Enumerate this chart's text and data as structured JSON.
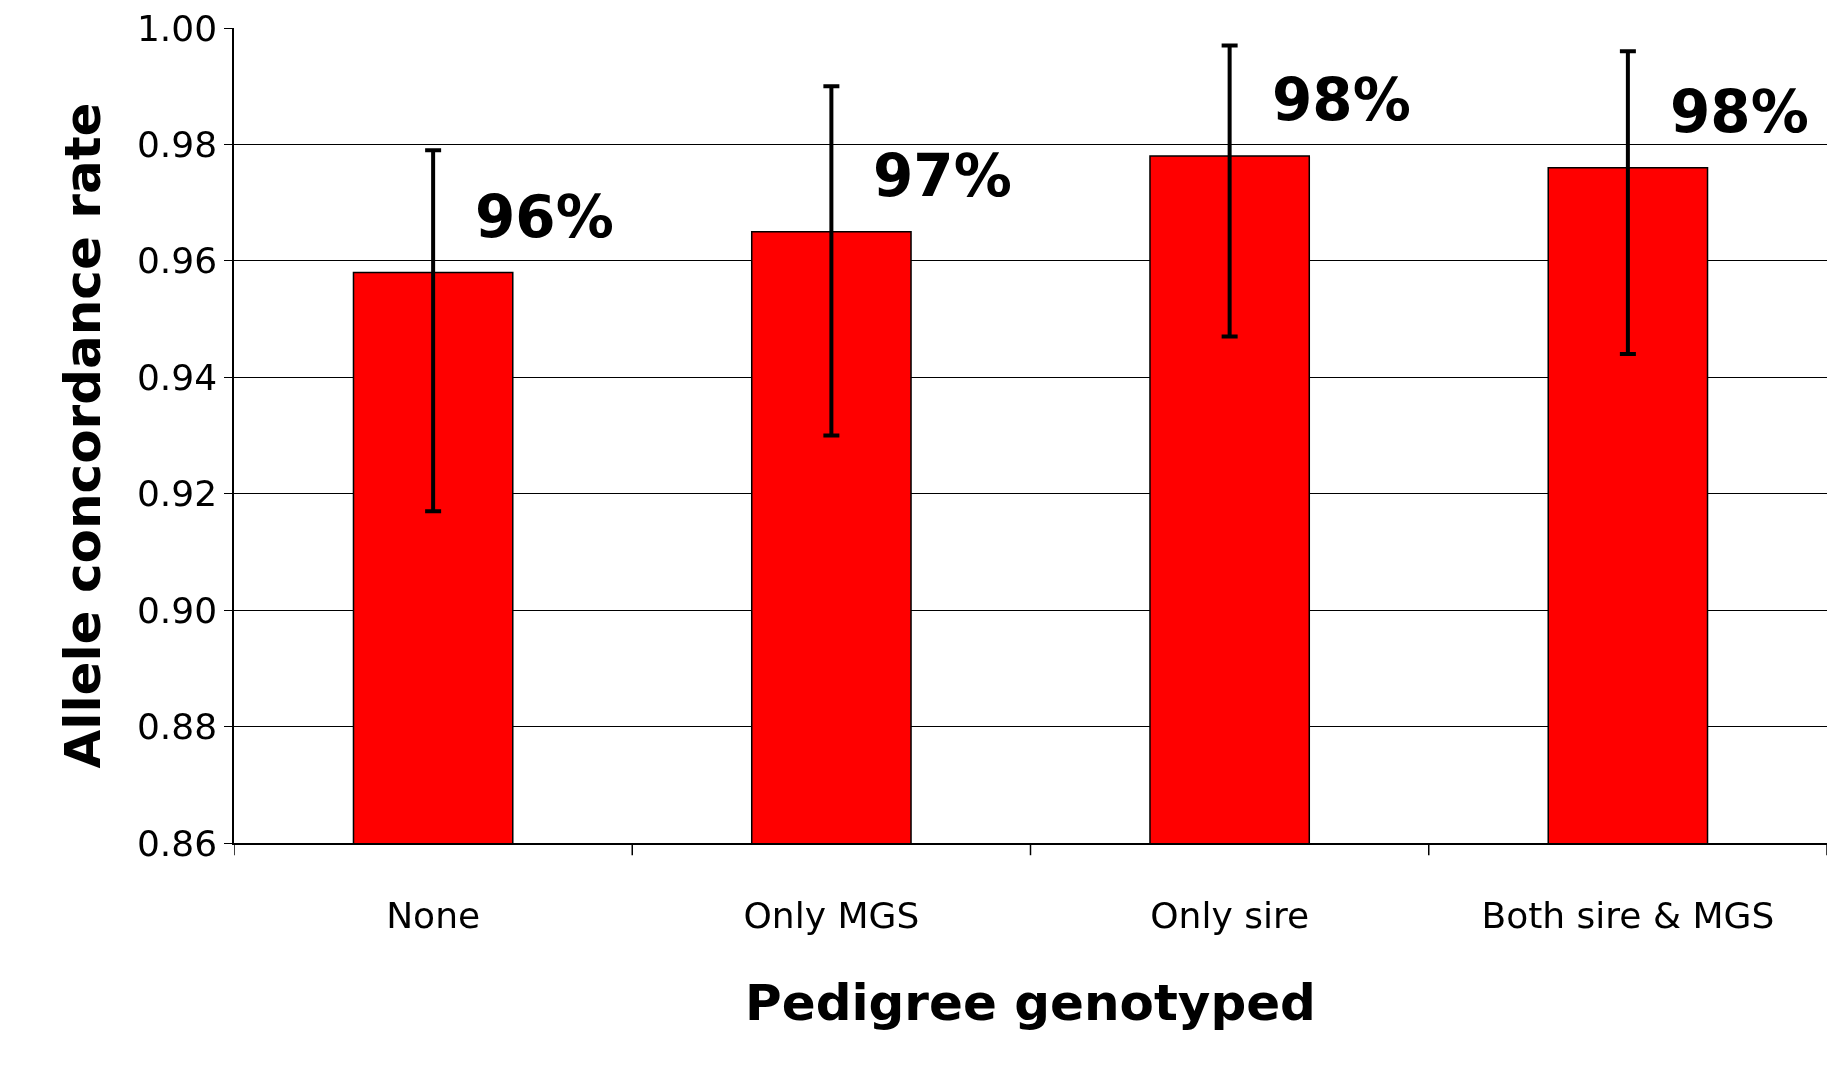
{
  "chart_data": {
    "type": "bar",
    "xlabel": "Pedigree genotyped",
    "ylabel": "Allele concordance rate",
    "categories": [
      "None",
      "Only MGS",
      "Only sire",
      "Both sire & MGS"
    ],
    "values": [
      0.958,
      0.965,
      0.978,
      0.976
    ],
    "color": "#ff0000",
    "errors": [
      [
        0.917,
        0.979
      ],
      [
        0.93,
        0.99
      ],
      [
        0.947,
        0.997
      ],
      [
        0.944,
        0.996
      ]
    ],
    "value_labels": [
      "96%",
      "97%",
      "98%",
      "98%"
    ],
    "ylim": [
      0.86,
      1.0
    ],
    "yticks": [
      {
        "value": 0.86,
        "label": "0.86"
      },
      {
        "value": 0.88,
        "label": "0.88"
      },
      {
        "value": 0.9,
        "label": "0.90"
      },
      {
        "value": 0.92,
        "label": "0.92"
      },
      {
        "value": 0.94,
        "label": "0.94"
      },
      {
        "value": 0.96,
        "label": "0.96"
      },
      {
        "value": 0.98,
        "label": "0.98"
      },
      {
        "value": 1.0,
        "label": "1.00"
      }
    ],
    "grid": "y"
  }
}
